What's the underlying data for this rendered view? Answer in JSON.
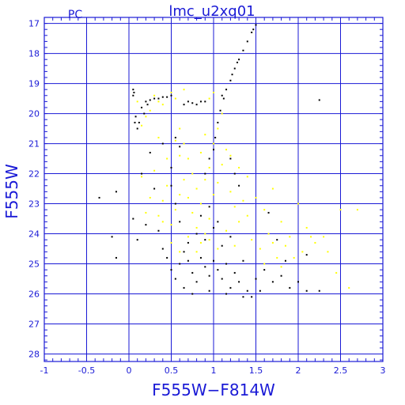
{
  "chart_data": {
    "type": "scatter",
    "title": "lmc_u2xq01",
    "corner_label": "PC",
    "xlabel": "F555W−F814W",
    "ylabel": "F555W",
    "xlim": [
      -1,
      3
    ],
    "ylim": [
      28.25,
      16.8
    ],
    "y_inverted": true,
    "grid": true,
    "x_ticks": [
      "-1",
      "-0.5",
      "0",
      "0.5",
      "1",
      "1.5",
      "2",
      "2.5",
      "3"
    ],
    "x_tick_values": [
      -1,
      -0.5,
      0,
      0.5,
      1,
      1.5,
      2,
      2.5,
      3
    ],
    "y_ticks": [
      "17",
      "18",
      "19",
      "20",
      "21",
      "22",
      "23",
      "24",
      "25",
      "26",
      "27",
      "28"
    ],
    "y_tick_values": [
      17,
      18,
      19,
      20,
      21,
      22,
      23,
      24,
      25,
      26,
      27,
      28
    ],
    "colors": {
      "axes": "#1a1ad6",
      "series_black": "#000000",
      "series_yellow": "#ffff00",
      "background": "#ffffff"
    },
    "series": [
      {
        "color": "#000000",
        "points": [
          [
            0.05,
            19.2
          ],
          [
            0.06,
            19.3
          ],
          [
            0.05,
            19.4
          ],
          [
            0.07,
            20.3
          ],
          [
            0.1,
            20.5
          ],
          [
            0.08,
            20.1
          ],
          [
            0.15,
            19.8
          ],
          [
            0.2,
            19.6
          ],
          [
            0.25,
            19.55
          ],
          [
            0.3,
            19.5
          ],
          [
            0.35,
            19.5
          ],
          [
            0.4,
            19.45
          ],
          [
            0.45,
            19.45
          ],
          [
            0.5,
            19.4
          ],
          [
            0.22,
            19.7
          ],
          [
            0.18,
            20.0
          ],
          [
            0.12,
            20.3
          ],
          [
            0.65,
            19.7
          ],
          [
            0.7,
            19.6
          ],
          [
            0.75,
            19.65
          ],
          [
            0.8,
            19.7
          ],
          [
            0.85,
            19.6
          ],
          [
            0.9,
            19.6
          ],
          [
            1.1,
            19.4
          ],
          [
            1.15,
            19.2
          ],
          [
            1.2,
            18.9
          ],
          [
            1.25,
            18.5
          ],
          [
            1.3,
            18.2
          ],
          [
            1.35,
            17.9
          ],
          [
            1.4,
            17.6
          ],
          [
            1.45,
            17.3
          ],
          [
            1.5,
            17.05
          ],
          [
            1.47,
            17.2
          ],
          [
            1.28,
            18.3
          ],
          [
            1.22,
            18.7
          ],
          [
            1.12,
            19.5
          ],
          [
            1.08,
            19.9
          ],
          [
            1.05,
            20.3
          ],
          [
            1.02,
            20.8
          ],
          [
            1.0,
            21.2
          ],
          [
            0.95,
            21.5
          ],
          [
            0.9,
            22.0
          ],
          [
            1.2,
            21.5
          ],
          [
            1.25,
            22.0
          ],
          [
            1.3,
            22.4
          ],
          [
            2.25,
            19.55
          ],
          [
            -0.35,
            22.8
          ],
          [
            -0.15,
            22.6
          ],
          [
            -0.2,
            24.1
          ],
          [
            -0.15,
            24.8
          ],
          [
            0.05,
            23.5
          ],
          [
            0.1,
            24.2
          ],
          [
            0.15,
            22.0
          ],
          [
            0.2,
            23.7
          ],
          [
            0.25,
            21.3
          ],
          [
            0.3,
            22.5
          ],
          [
            0.35,
            23.9
          ],
          [
            0.4,
            24.5
          ],
          [
            0.5,
            21.8
          ],
          [
            0.55,
            23.0
          ],
          [
            0.6,
            23.6
          ],
          [
            0.45,
            24.8
          ],
          [
            0.5,
            25.2
          ],
          [
            0.55,
            25.5
          ],
          [
            0.6,
            25.0
          ],
          [
            0.65,
            24.6
          ],
          [
            0.7,
            24.9
          ],
          [
            0.75,
            25.3
          ],
          [
            0.8,
            25.6
          ],
          [
            0.85,
            24.8
          ],
          [
            0.9,
            25.1
          ],
          [
            0.95,
            25.4
          ],
          [
            1.0,
            24.9
          ],
          [
            1.05,
            25.2
          ],
          [
            1.1,
            25.5
          ],
          [
            1.15,
            25.0
          ],
          [
            1.2,
            25.8
          ],
          [
            1.25,
            25.3
          ],
          [
            1.3,
            25.6
          ],
          [
            1.35,
            24.9
          ],
          [
            1.4,
            25.9
          ],
          [
            1.45,
            26.1
          ],
          [
            1.5,
            25.5
          ],
          [
            1.6,
            25.2
          ],
          [
            1.7,
            25.6
          ],
          [
            1.8,
            25.4
          ],
          [
            1.9,
            25.8
          ],
          [
            2.0,
            25.6
          ],
          [
            2.1,
            25.9
          ],
          [
            2.25,
            25.9
          ],
          [
            0.7,
            24.3
          ],
          [
            0.8,
            24.0
          ],
          [
            0.9,
            24.2
          ],
          [
            1.0,
            23.8
          ],
          [
            1.1,
            24.4
          ],
          [
            1.2,
            24.1
          ],
          [
            0.65,
            25.8
          ],
          [
            0.75,
            26.0
          ],
          [
            0.95,
            25.9
          ],
          [
            1.15,
            26.0
          ],
          [
            1.35,
            26.1
          ],
          [
            1.55,
            25.9
          ],
          [
            0.85,
            23.4
          ],
          [
            0.95,
            23.1
          ],
          [
            1.05,
            23.6
          ],
          [
            1.65,
            23.3
          ],
          [
            1.75,
            24.2
          ],
          [
            1.85,
            24.9
          ],
          [
            2.1,
            24.7
          ],
          [
            0.55,
            20.8
          ],
          [
            0.6,
            21.1
          ],
          [
            0.4,
            21.0
          ],
          [
            0.5,
            22.4
          ]
        ]
      },
      {
        "color": "#ffff00",
        "points": [
          [
            0.6,
            20.5
          ],
          [
            0.65,
            21.0
          ],
          [
            0.7,
            21.5
          ],
          [
            0.75,
            22.0
          ],
          [
            0.8,
            22.5
          ],
          [
            0.85,
            23.0
          ],
          [
            0.9,
            22.2
          ],
          [
            0.95,
            21.8
          ],
          [
            1.0,
            21.0
          ],
          [
            1.05,
            20.5
          ],
          [
            1.1,
            20.0
          ],
          [
            0.7,
            22.8
          ],
          [
            0.75,
            23.3
          ],
          [
            0.8,
            23.8
          ],
          [
            0.85,
            24.3
          ],
          [
            0.9,
            24.0
          ],
          [
            0.95,
            23.5
          ],
          [
            1.0,
            22.7
          ],
          [
            1.05,
            22.3
          ],
          [
            1.1,
            21.7
          ],
          [
            1.15,
            21.2
          ],
          [
            0.65,
            22.2
          ],
          [
            0.6,
            22.7
          ],
          [
            0.55,
            23.2
          ],
          [
            0.5,
            23.7
          ],
          [
            0.45,
            22.4
          ],
          [
            0.4,
            22.9
          ],
          [
            0.35,
            23.4
          ],
          [
            0.3,
            21.9
          ],
          [
            0.25,
            22.8
          ],
          [
            0.2,
            23.3
          ],
          [
            0.15,
            22.1
          ],
          [
            1.2,
            22.6
          ],
          [
            1.25,
            23.1
          ],
          [
            1.3,
            23.6
          ],
          [
            1.35,
            22.9
          ],
          [
            1.4,
            23.4
          ],
          [
            1.5,
            22.8
          ],
          [
            1.6,
            23.2
          ],
          [
            1.7,
            22.5
          ],
          [
            1.8,
            23.6
          ],
          [
            1.9,
            24.1
          ],
          [
            2.0,
            23.0
          ],
          [
            2.1,
            23.8
          ],
          [
            2.2,
            24.3
          ],
          [
            2.3,
            24.1
          ],
          [
            2.5,
            23.2
          ],
          [
            2.7,
            23.2
          ],
          [
            1.55,
            24.5
          ],
          [
            1.65,
            24.0
          ],
          [
            1.75,
            24.8
          ],
          [
            1.85,
            24.4
          ],
          [
            2.05,
            24.6
          ],
          [
            0.3,
            19.4
          ],
          [
            0.35,
            19.6
          ],
          [
            0.4,
            19.7
          ],
          [
            0.5,
            19.3
          ],
          [
            0.55,
            19.5
          ],
          [
            0.65,
            19.2
          ],
          [
            0.95,
            19.5
          ],
          [
            1.0,
            19.3
          ],
          [
            0.2,
            20.1
          ],
          [
            0.25,
            19.9
          ],
          [
            0.15,
            20.4
          ],
          [
            0.55,
            20.9
          ],
          [
            0.6,
            21.4
          ],
          [
            0.85,
            21.3
          ],
          [
            0.9,
            20.7
          ],
          [
            0.7,
            24.1
          ],
          [
            0.8,
            24.6
          ],
          [
            0.95,
            24.2
          ],
          [
            1.05,
            24.5
          ],
          [
            1.15,
            23.9
          ],
          [
            1.25,
            24.4
          ],
          [
            0.5,
            24.3
          ],
          [
            0.6,
            24.6
          ],
          [
            0.4,
            23.6
          ],
          [
            0.45,
            21.5
          ],
          [
            0.35,
            20.8
          ],
          [
            0.1,
            19.6
          ],
          [
            1.45,
            24.2
          ],
          [
            1.6,
            25.0
          ],
          [
            1.95,
            24.8
          ],
          [
            2.15,
            24.1
          ],
          [
            2.35,
            24.6
          ],
          [
            2.45,
            25.3
          ],
          [
            2.6,
            25.8
          ],
          [
            1.7,
            24.3
          ],
          [
            1.8,
            25.1
          ],
          [
            1.4,
            22.1
          ],
          [
            1.3,
            21.8
          ],
          [
            1.2,
            21.4
          ]
        ]
      }
    ]
  }
}
